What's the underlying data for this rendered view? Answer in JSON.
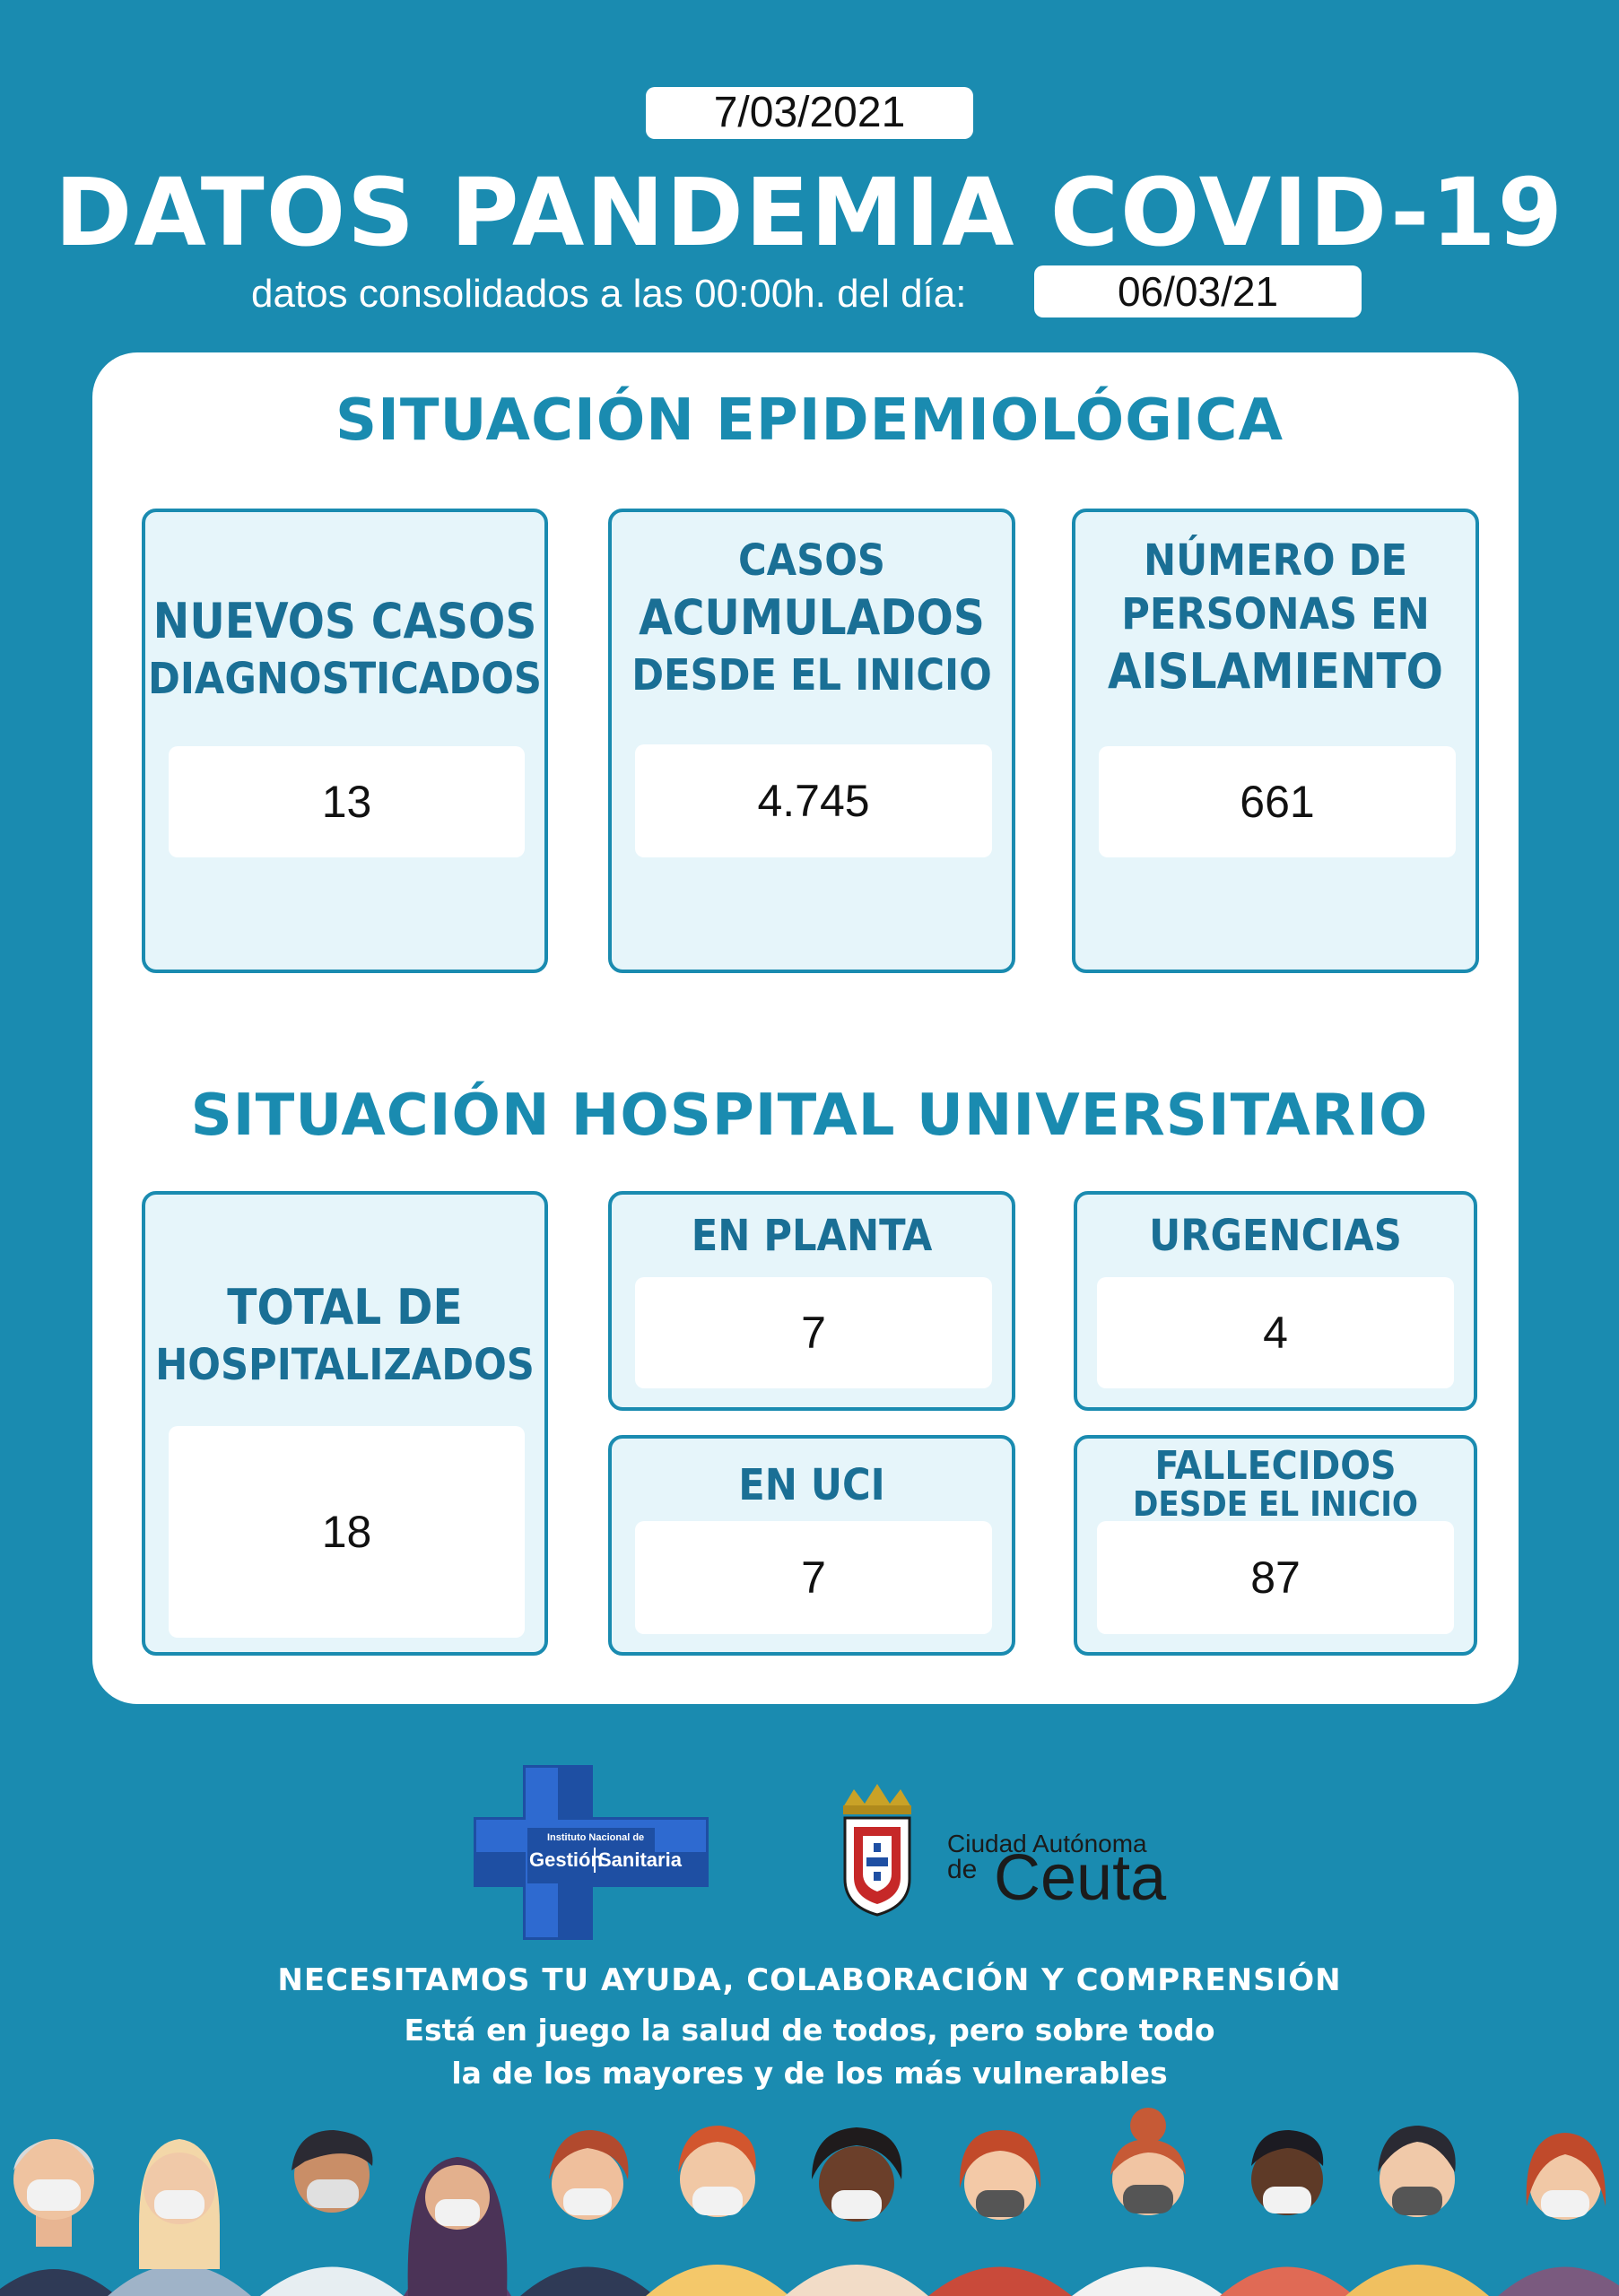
{
  "header": {
    "date": "7/03/2021",
    "title": "DATOS PANDEMIA COVID-19",
    "subtitle": "datos consolidados a las 00:00h. del día:",
    "consolidated_date": "06/03/21"
  },
  "epidemiologica": {
    "title": "SITUACIÓN EPIDEMIOLÓGICA",
    "nuevos": {
      "line1": "NUEVOS CASOS",
      "line2": "DIAGNOSTICADOS",
      "value": "13"
    },
    "acumulados": {
      "line1": "CASOS",
      "line2": "ACUMULADOS",
      "line3": "DESDE EL INICIO",
      "value": "4.745"
    },
    "aislamiento": {
      "line1": "NÚMERO DE",
      "line2": "PERSONAS EN",
      "line3": "AISLAMIENTO",
      "value": "661"
    }
  },
  "hospital": {
    "title": "SITUACIÓN HOSPITAL UNIVERSITARIO",
    "total": {
      "line1": "TOTAL DE",
      "line2": "HOSPITALIZADOS",
      "value": "18"
    },
    "planta": {
      "label": "EN PLANTA",
      "value": "7"
    },
    "urgencias": {
      "label": "URGENCIAS",
      "value": "4"
    },
    "uci": {
      "label": "EN UCI",
      "value": "7"
    },
    "fallecidos": {
      "line1": "FALLECIDOS",
      "line2": "DESDE EL INICIO",
      "value": "87"
    }
  },
  "logos": {
    "igs_line1": "Instituto Nacional de",
    "igs_gestion": "Gestión",
    "igs_sanitaria": "Sanitaria",
    "ceuta_line1": "Ciudad Autónoma",
    "ceuta_de": "de",
    "ceuta_name": "Ceuta"
  },
  "footer": {
    "line1": "NECESITAMOS TU AYUDA, COLABORACIÓN  Y COMPRENSIÓN",
    "line2": "Está en juego la salud de todos, pero sobre todo",
    "line3": "la de los mayores y de los más vulnerables"
  },
  "colors": {
    "background": "#1a8bb0",
    "accent": "#1a6f95",
    "card_fill": "#e6f5fa"
  }
}
